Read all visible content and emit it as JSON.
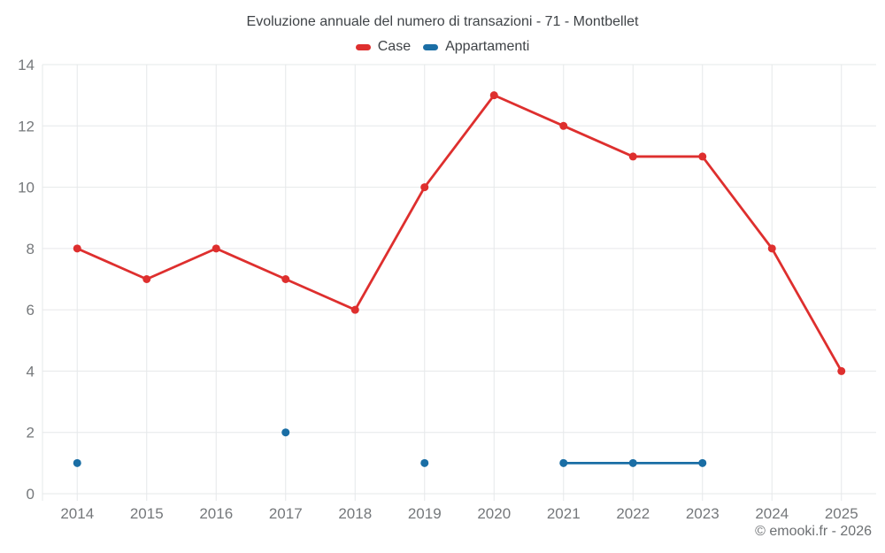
{
  "chart_data": {
    "type": "line",
    "title": "Evoluzione annuale del numero di transazioni - 71 - Montbellet",
    "categories": [
      "2014",
      "2015",
      "2016",
      "2017",
      "2018",
      "2019",
      "2020",
      "2021",
      "2022",
      "2023",
      "2024",
      "2025"
    ],
    "series": [
      {
        "name": "Case",
        "color": "#de2f2e",
        "values": [
          8,
          7,
          8,
          7,
          6,
          10,
          13,
          12,
          11,
          11,
          8,
          4
        ]
      },
      {
        "name": "Appartamenti",
        "color": "#1a6ea5",
        "values": [
          1,
          null,
          null,
          2,
          null,
          1,
          null,
          1,
          1,
          1,
          null,
          null
        ]
      }
    ],
    "xlabel": "",
    "ylabel": "",
    "ylim": [
      0,
      14
    ],
    "ytick_step": 2,
    "grid": true,
    "legend_position": "top",
    "colors": {
      "grid": "#e6e8ea",
      "tick_label": "#75787b",
      "title": "#3f4347"
    }
  },
  "copyright": "© emooki.fr - 2026"
}
